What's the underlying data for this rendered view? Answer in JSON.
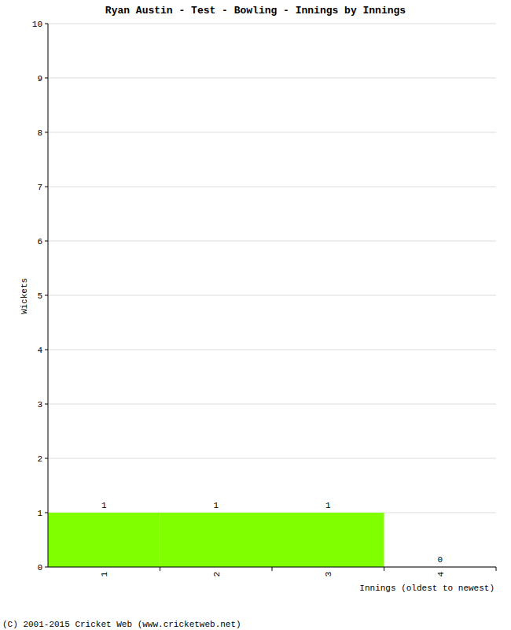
{
  "chart_data": {
    "type": "bar",
    "title": "Ryan Austin - Test - Bowling - Innings by Innings",
    "categories": [
      "1",
      "2",
      "3",
      "4"
    ],
    "values": [
      1,
      1,
      1,
      0
    ],
    "color": "#80ff00",
    "ylim": [
      0,
      10
    ],
    "yticks": [
      0,
      1,
      2,
      3,
      4,
      5,
      6,
      7,
      8,
      9,
      10
    ],
    "grid": true,
    "data_labels": true,
    "y_label": "Wickets",
    "x_label": "Innings (oldest to newest)",
    "annotations": [
      "(C) 2001-2015 Cricket Web (www.cricketweb.net)"
    ]
  }
}
